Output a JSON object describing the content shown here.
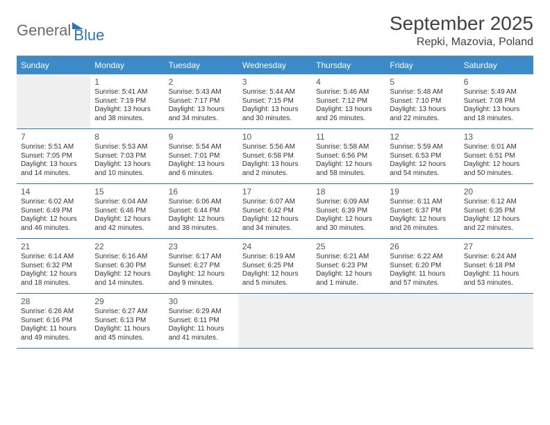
{
  "brand": {
    "part1": "General",
    "part2": "Blue"
  },
  "title": "September 2025",
  "location": "Repki, Mazovia, Poland",
  "colors": {
    "header_bg": "#3b8bc9",
    "header_text": "#ffffff",
    "border": "#2e75b6",
    "empty_bg": "#f0f0f0",
    "text": "#333333",
    "title_text": "#404040"
  },
  "dayNames": [
    "Sunday",
    "Monday",
    "Tuesday",
    "Wednesday",
    "Thursday",
    "Friday",
    "Saturday"
  ],
  "weeks": [
    [
      null,
      {
        "n": "1",
        "sr": "5:41 AM",
        "ss": "7:19 PM",
        "dl": "13 hours and 38 minutes."
      },
      {
        "n": "2",
        "sr": "5:43 AM",
        "ss": "7:17 PM",
        "dl": "13 hours and 34 minutes."
      },
      {
        "n": "3",
        "sr": "5:44 AM",
        "ss": "7:15 PM",
        "dl": "13 hours and 30 minutes."
      },
      {
        "n": "4",
        "sr": "5:46 AM",
        "ss": "7:12 PM",
        "dl": "13 hours and 26 minutes."
      },
      {
        "n": "5",
        "sr": "5:48 AM",
        "ss": "7:10 PM",
        "dl": "13 hours and 22 minutes."
      },
      {
        "n": "6",
        "sr": "5:49 AM",
        "ss": "7:08 PM",
        "dl": "13 hours and 18 minutes."
      }
    ],
    [
      {
        "n": "7",
        "sr": "5:51 AM",
        "ss": "7:05 PM",
        "dl": "13 hours and 14 minutes."
      },
      {
        "n": "8",
        "sr": "5:53 AM",
        "ss": "7:03 PM",
        "dl": "13 hours and 10 minutes."
      },
      {
        "n": "9",
        "sr": "5:54 AM",
        "ss": "7:01 PM",
        "dl": "13 hours and 6 minutes."
      },
      {
        "n": "10",
        "sr": "5:56 AM",
        "ss": "6:58 PM",
        "dl": "13 hours and 2 minutes."
      },
      {
        "n": "11",
        "sr": "5:58 AM",
        "ss": "6:56 PM",
        "dl": "12 hours and 58 minutes."
      },
      {
        "n": "12",
        "sr": "5:59 AM",
        "ss": "6:53 PM",
        "dl": "12 hours and 54 minutes."
      },
      {
        "n": "13",
        "sr": "6:01 AM",
        "ss": "6:51 PM",
        "dl": "12 hours and 50 minutes."
      }
    ],
    [
      {
        "n": "14",
        "sr": "6:02 AM",
        "ss": "6:49 PM",
        "dl": "12 hours and 46 minutes."
      },
      {
        "n": "15",
        "sr": "6:04 AM",
        "ss": "6:46 PM",
        "dl": "12 hours and 42 minutes."
      },
      {
        "n": "16",
        "sr": "6:06 AM",
        "ss": "6:44 PM",
        "dl": "12 hours and 38 minutes."
      },
      {
        "n": "17",
        "sr": "6:07 AM",
        "ss": "6:42 PM",
        "dl": "12 hours and 34 minutes."
      },
      {
        "n": "18",
        "sr": "6:09 AM",
        "ss": "6:39 PM",
        "dl": "12 hours and 30 minutes."
      },
      {
        "n": "19",
        "sr": "6:11 AM",
        "ss": "6:37 PM",
        "dl": "12 hours and 26 minutes."
      },
      {
        "n": "20",
        "sr": "6:12 AM",
        "ss": "6:35 PM",
        "dl": "12 hours and 22 minutes."
      }
    ],
    [
      {
        "n": "21",
        "sr": "6:14 AM",
        "ss": "6:32 PM",
        "dl": "12 hours and 18 minutes."
      },
      {
        "n": "22",
        "sr": "6:16 AM",
        "ss": "6:30 PM",
        "dl": "12 hours and 14 minutes."
      },
      {
        "n": "23",
        "sr": "6:17 AM",
        "ss": "6:27 PM",
        "dl": "12 hours and 9 minutes."
      },
      {
        "n": "24",
        "sr": "6:19 AM",
        "ss": "6:25 PM",
        "dl": "12 hours and 5 minutes."
      },
      {
        "n": "25",
        "sr": "6:21 AM",
        "ss": "6:23 PM",
        "dl": "12 hours and 1 minute."
      },
      {
        "n": "26",
        "sr": "6:22 AM",
        "ss": "6:20 PM",
        "dl": "11 hours and 57 minutes."
      },
      {
        "n": "27",
        "sr": "6:24 AM",
        "ss": "6:18 PM",
        "dl": "11 hours and 53 minutes."
      }
    ],
    [
      {
        "n": "28",
        "sr": "6:26 AM",
        "ss": "6:16 PM",
        "dl": "11 hours and 49 minutes."
      },
      {
        "n": "29",
        "sr": "6:27 AM",
        "ss": "6:13 PM",
        "dl": "11 hours and 45 minutes."
      },
      {
        "n": "30",
        "sr": "6:29 AM",
        "ss": "6:11 PM",
        "dl": "11 hours and 41 minutes."
      },
      null,
      null,
      null,
      null
    ]
  ],
  "labels": {
    "sunrise": "Sunrise:",
    "sunset": "Sunset:",
    "daylight": "Daylight:"
  }
}
